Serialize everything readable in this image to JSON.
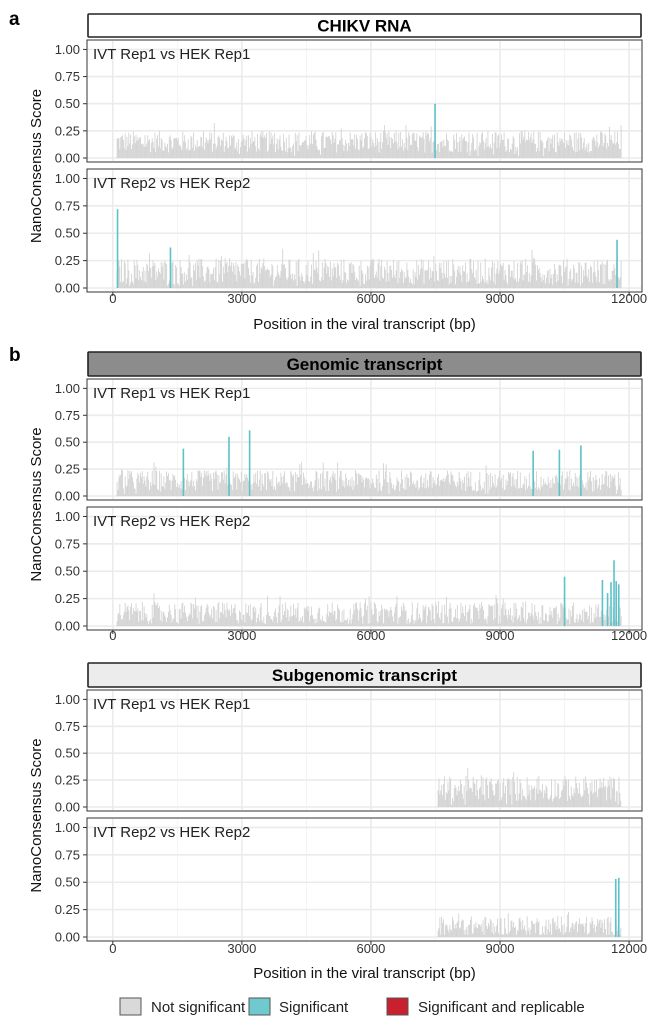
{
  "figure": {
    "panel_a_letter": "a",
    "panel_b_letter": "b",
    "legend": [
      {
        "label": "Not significant",
        "color": "#d9d9d9"
      },
      {
        "label": "Significant",
        "color": "#6fc9cf"
      },
      {
        "label": "Significant and replicable",
        "color": "#c8202f"
      }
    ]
  },
  "chart_data": [
    {
      "type": "bar",
      "group": "a",
      "strip_title": "CHIKV RNA",
      "strip_style": "white",
      "xlabel": "Position in the viral transcript (bp)",
      "ylabel": "NanoConsensus Score",
      "xlim": [
        -600,
        12300
      ],
      "ylim": [
        0,
        1.05
      ],
      "x_ticks": [
        0,
        3000,
        6000,
        9000,
        12000
      ],
      "y_ticks": [
        0,
        0.25,
        0.5,
        0.75,
        1.0
      ],
      "y_tick_labels": [
        "0.00",
        "0.25",
        "0.50",
        "0.75",
        "1.00"
      ],
      "facets": [
        {
          "label": "IVT Rep1 vs HEK Rep1",
          "range": [
            100,
            11820
          ],
          "baseline": 0.15,
          "noise": 0.1,
          "significant": [
            {
              "x": 7490,
              "y": 0.5
            }
          ]
        },
        {
          "label": "IVT Rep2 vs HEK Rep2",
          "range": [
            100,
            11820
          ],
          "baseline": 0.15,
          "noise": 0.12,
          "significant": [
            {
              "x": 110,
              "y": 0.72
            },
            {
              "x": 1340,
              "y": 0.37
            },
            {
              "x": 11720,
              "y": 0.44
            }
          ]
        }
      ]
    },
    {
      "type": "bar",
      "group": "b",
      "strip_title": "Genomic transcript",
      "strip_style": "dark",
      "xlabel": "",
      "ylabel": "NanoConsensus Score",
      "xlim": [
        -600,
        12300
      ],
      "ylim": [
        0,
        1.05
      ],
      "x_ticks": [
        0,
        3000,
        6000,
        9000,
        12000
      ],
      "y_ticks": [
        0,
        0.25,
        0.5,
        0.75,
        1.0
      ],
      "y_tick_labels": [
        "0.00",
        "0.25",
        "0.50",
        "0.75",
        "1.00"
      ],
      "facets": [
        {
          "label": "IVT Rep1 vs HEK Rep1",
          "range": [
            100,
            11820
          ],
          "baseline": 0.14,
          "noise": 0.1,
          "significant": [
            {
              "x": 1640,
              "y": 0.44
            },
            {
              "x": 2700,
              "y": 0.55
            },
            {
              "x": 3180,
              "y": 0.61
            },
            {
              "x": 9770,
              "y": 0.42
            },
            {
              "x": 10380,
              "y": 0.43
            },
            {
              "x": 10880,
              "y": 0.47
            }
          ]
        },
        {
          "label": "IVT Rep2 vs HEK Rep2",
          "range": [
            100,
            11820
          ],
          "baseline": 0.12,
          "noise": 0.1,
          "significant": [
            {
              "x": 10500,
              "y": 0.45
            },
            {
              "x": 11380,
              "y": 0.42
            },
            {
              "x": 11500,
              "y": 0.3
            },
            {
              "x": 11580,
              "y": 0.4
            },
            {
              "x": 11650,
              "y": 0.6
            },
            {
              "x": 11700,
              "y": 0.41
            },
            {
              "x": 11760,
              "y": 0.38
            }
          ]
        }
      ]
    },
    {
      "type": "bar",
      "group": "b",
      "strip_title": "Subgenomic transcript",
      "strip_style": "light",
      "xlabel": "Position in the viral transcript (bp)",
      "ylabel": "NanoConsensus Score",
      "xlim": [
        -600,
        12300
      ],
      "ylim": [
        0,
        1.05
      ],
      "x_ticks": [
        0,
        3000,
        6000,
        9000,
        12000
      ],
      "y_ticks": [
        0,
        0.25,
        0.5,
        0.75,
        1.0
      ],
      "y_tick_labels": [
        "0.00",
        "0.25",
        "0.50",
        "0.75",
        "1.00"
      ],
      "facets": [
        {
          "label": "IVT Rep1 vs HEK Rep1",
          "range": [
            7560,
            11820
          ],
          "baseline": 0.17,
          "noise": 0.12,
          "significant": []
        },
        {
          "label": "IVT Rep2 vs HEK Rep2",
          "range": [
            7560,
            11820
          ],
          "baseline": 0.1,
          "noise": 0.09,
          "significant": [
            {
              "x": 11690,
              "y": 0.53
            },
            {
              "x": 11760,
              "y": 0.54
            }
          ]
        }
      ]
    }
  ]
}
